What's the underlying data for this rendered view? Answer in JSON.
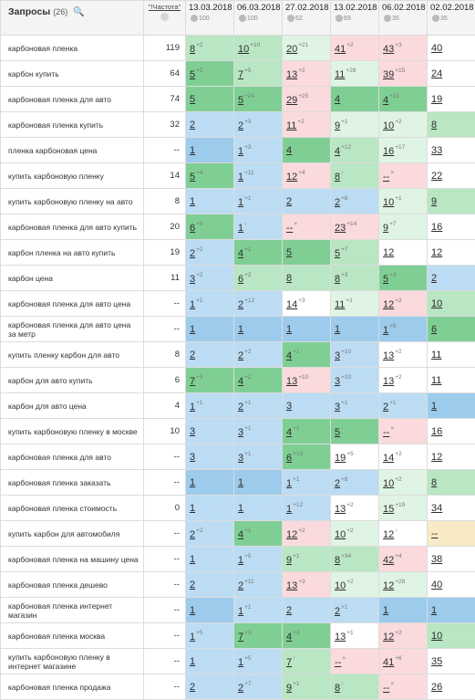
{
  "header": {
    "title": "Запросы",
    "count": "(26)",
    "freq_label": "\"!Частота\"",
    "dates": [
      {
        "date": "13.03.2018",
        "sub": "100"
      },
      {
        "date": "06.03.2018",
        "sub": "100"
      },
      {
        "date": "27.02.2018",
        "sub": "62"
      },
      {
        "date": "13.02.2018",
        "sub": "69"
      },
      {
        "date": "06.02.2018",
        "sub": "35"
      },
      {
        "date": "02.02.2018",
        "sub": "35"
      }
    ]
  },
  "rows": [
    {
      "q": "карбоновая пленка",
      "f": "119",
      "p": [
        [
          "8",
          "+2",
          "top10"
        ],
        [
          "10",
          "+10",
          "top10"
        ],
        [
          "20",
          "+21",
          "top30"
        ],
        [
          "41",
          "+2",
          "bad"
        ],
        [
          "43",
          "+3",
          "bad"
        ],
        [
          "40",
          "",
          "none"
        ]
      ]
    },
    {
      "q": "карбон купить",
      "f": "64",
      "p": [
        [
          "5",
          "+2",
          "top3"
        ],
        [
          "7",
          "+5",
          "top10"
        ],
        [
          "13",
          "+2",
          "bad"
        ],
        [
          "11",
          "+28",
          "top30"
        ],
        [
          "39",
          "+15",
          "bad"
        ],
        [
          "24",
          "",
          "none"
        ]
      ]
    },
    {
      "q": "карбоновая пленка для авто",
      "f": "74",
      "p": [
        [
          "5",
          "",
          "top3"
        ],
        [
          "5",
          "+24",
          "top3"
        ],
        [
          "29",
          "+25",
          "bad"
        ],
        [
          "4",
          "",
          "top3"
        ],
        [
          "4",
          "+15",
          "top3"
        ],
        [
          "19",
          "",
          "none"
        ]
      ]
    },
    {
      "q": "карбоновая пленка купить",
      "f": "32",
      "p": [
        [
          "2",
          "",
          "top2"
        ],
        [
          "2",
          "+3",
          "top2"
        ],
        [
          "11",
          "+2",
          "bad"
        ],
        [
          "9",
          "+1",
          "top30"
        ],
        [
          "10",
          "+2",
          "top30"
        ],
        [
          "8",
          "",
          "top10"
        ]
      ]
    },
    {
      "q": "пленка карбоновая цена",
      "f": "--",
      "p": [
        [
          "1",
          "",
          "top1"
        ],
        [
          "1",
          "+3",
          "top2"
        ],
        [
          "4",
          "",
          "top3"
        ],
        [
          "4",
          "+12",
          "top10"
        ],
        [
          "16",
          "+17",
          "top30"
        ],
        [
          "33",
          "",
          "none"
        ]
      ]
    },
    {
      "q": "купить карбоновую пленку",
      "f": "14",
      "p": [
        [
          "5",
          "+4",
          "top3"
        ],
        [
          "1",
          "+11",
          "top2"
        ],
        [
          "12",
          "+4",
          "bad"
        ],
        [
          "8",
          "↑",
          "top10"
        ],
        [
          "--",
          "×",
          "bad"
        ],
        [
          "22",
          "",
          "none"
        ]
      ]
    },
    {
      "q": "купить карбоновую пленку на авто",
      "f": "8",
      "p": [
        [
          "1",
          "",
          "top2"
        ],
        [
          "1",
          "+1",
          "top2"
        ],
        [
          "2",
          "",
          "top2"
        ],
        [
          "2",
          "+8",
          "top2"
        ],
        [
          "10",
          "+1",
          "top30"
        ],
        [
          "9",
          "",
          "top10"
        ]
      ]
    },
    {
      "q": "карбоновая пленка для авто купить",
      "f": "20",
      "p": [
        [
          "6",
          "+5",
          "top3"
        ],
        [
          "1",
          "↑",
          "top2"
        ],
        [
          "--",
          "×",
          "bad"
        ],
        [
          "23",
          "+14",
          "bad"
        ],
        [
          "9",
          "+7",
          "top30"
        ],
        [
          "16",
          "",
          "none"
        ]
      ]
    },
    {
      "q": "карбон пленка на авто купить",
      "f": "19",
      "p": [
        [
          "2",
          "+2",
          "top2"
        ],
        [
          "4",
          "+1",
          "top3"
        ],
        [
          "5",
          "",
          "top3"
        ],
        [
          "5",
          "+7",
          "top10"
        ],
        [
          "12",
          "",
          "none"
        ],
        [
          "12",
          "",
          "none"
        ]
      ]
    },
    {
      "q": "карбон цена",
      "f": "11",
      "p": [
        [
          "3",
          "+2",
          "top2"
        ],
        [
          "6",
          "+2",
          "top10"
        ],
        [
          "8",
          "",
          "top10"
        ],
        [
          "8",
          "+3",
          "top10"
        ],
        [
          "5",
          "+3",
          "top3"
        ],
        [
          "2",
          "",
          "top2"
        ]
      ]
    },
    {
      "q": "карбоновая пленка для авто цена",
      "f": "--",
      "p": [
        [
          "1",
          "+1",
          "top2"
        ],
        [
          "2",
          "+12",
          "top2"
        ],
        [
          "14",
          "+3",
          "none"
        ],
        [
          "11",
          "+1",
          "top30"
        ],
        [
          "12",
          "+2",
          "bad"
        ],
        [
          "10",
          "",
          "top10"
        ]
      ]
    },
    {
      "q": "карбоновая пленка для авто цена за метр",
      "f": "--",
      "p": [
        [
          "1",
          "",
          "top1"
        ],
        [
          "1",
          "",
          "top1"
        ],
        [
          "1",
          "",
          "top1"
        ],
        [
          "1",
          "",
          "top1"
        ],
        [
          "1",
          "+5",
          "top1"
        ],
        [
          "6",
          "",
          "top3"
        ]
      ]
    },
    {
      "q": "купить пленку карбон для авто",
      "f": "8",
      "p": [
        [
          "2",
          "",
          "top2"
        ],
        [
          "2",
          "+2",
          "top2"
        ],
        [
          "4",
          "+1",
          "top3"
        ],
        [
          "3",
          "+10",
          "top2"
        ],
        [
          "13",
          "+2",
          "none"
        ],
        [
          "11",
          "",
          "none"
        ]
      ]
    },
    {
      "q": "карбон для авто купить",
      "f": "6",
      "p": [
        [
          "7",
          "+3",
          "top3"
        ],
        [
          "4",
          "+2",
          "top3"
        ],
        [
          "13",
          "+10",
          "bad"
        ],
        [
          "3",
          "+10",
          "top2"
        ],
        [
          "13",
          "+2",
          "none"
        ],
        [
          "11",
          "",
          "none"
        ]
      ]
    },
    {
      "q": "карбон для авто цена",
      "f": "4",
      "p": [
        [
          "1",
          "+1",
          "top2"
        ],
        [
          "2",
          "+1",
          "top2"
        ],
        [
          "3",
          "",
          "top2"
        ],
        [
          "3",
          "+1",
          "top2"
        ],
        [
          "2",
          "+1",
          "top2"
        ],
        [
          "1",
          "",
          "top1"
        ]
      ]
    },
    {
      "q": "купить карбоновую пленку в москве",
      "f": "10",
      "p": [
        [
          "3",
          "",
          "top2"
        ],
        [
          "3",
          "+1",
          "top2"
        ],
        [
          "4",
          "+1",
          "top3"
        ],
        [
          "5",
          "↑",
          "top3"
        ],
        [
          "--",
          "×",
          "bad"
        ],
        [
          "16",
          "",
          "none"
        ]
      ]
    },
    {
      "q": "карбоновая пленка для авто",
      "f": "--",
      "p": [
        [
          "3",
          "",
          "top2"
        ],
        [
          "3",
          "+1",
          "top2"
        ],
        [
          "6",
          "+13",
          "top3"
        ],
        [
          "19",
          "+5",
          "none"
        ],
        [
          "14",
          "+2",
          "none"
        ],
        [
          "12",
          "",
          "none"
        ]
      ]
    },
    {
      "q": "карбоновая пленка заказать",
      "f": "--",
      "p": [
        [
          "1",
          "",
          "top1"
        ],
        [
          "1",
          "",
          "top1"
        ],
        [
          "1",
          "+1",
          "top2"
        ],
        [
          "2",
          "+8",
          "top2"
        ],
        [
          "10",
          "+2",
          "top30"
        ],
        [
          "8",
          "",
          "top10"
        ]
      ]
    },
    {
      "q": "карбоновая пленка стоимость",
      "f": "0",
      "p": [
        [
          "1",
          "",
          "top2"
        ],
        [
          "1",
          "",
          "top2"
        ],
        [
          "1",
          "+12",
          "top2"
        ],
        [
          "13",
          "+2",
          "none"
        ],
        [
          "15",
          "+19",
          "top30"
        ],
        [
          "34",
          "",
          "none"
        ]
      ]
    },
    {
      "q": "купить карбон для автомобиля",
      "f": "--",
      "p": [
        [
          "2",
          "+2",
          "top2"
        ],
        [
          "4",
          "+1",
          "top3"
        ],
        [
          "12",
          "+2",
          "bad"
        ],
        [
          "10",
          "+2",
          "top30"
        ],
        [
          "12",
          "↑",
          "none"
        ],
        [
          "--",
          "",
          "yel"
        ]
      ]
    },
    {
      "q": "карбоновая пленка на машину цена",
      "f": "--",
      "p": [
        [
          "1",
          "",
          "top2"
        ],
        [
          "1",
          "+5",
          "top2"
        ],
        [
          "9",
          "+1",
          "top10"
        ],
        [
          "8",
          "+34",
          "top10"
        ],
        [
          "42",
          "+4",
          "bad"
        ],
        [
          "38",
          "",
          "none"
        ]
      ]
    },
    {
      "q": "карбоновая пленка дешево",
      "f": "--",
      "p": [
        [
          "2",
          "",
          "top2"
        ],
        [
          "2",
          "+11",
          "top2"
        ],
        [
          "13",
          "+3",
          "bad"
        ],
        [
          "10",
          "+2",
          "top30"
        ],
        [
          "12",
          "+28",
          "top30"
        ],
        [
          "40",
          "",
          "none"
        ]
      ]
    },
    {
      "q": "карбоновая пленка интернет магазин",
      "f": "--",
      "p": [
        [
          "1",
          "",
          "top1"
        ],
        [
          "1",
          "+1",
          "top2"
        ],
        [
          "2",
          "",
          "top2"
        ],
        [
          "2",
          "+1",
          "top2"
        ],
        [
          "1",
          "",
          "top1"
        ],
        [
          "1",
          "",
          "top1"
        ]
      ]
    },
    {
      "q": "карбоновая пленка москва",
      "f": "--",
      "p": [
        [
          "1",
          "+5",
          "top2"
        ],
        [
          "7",
          "+3",
          "top3"
        ],
        [
          "4",
          "+3",
          "top3"
        ],
        [
          "13",
          "+1",
          "none"
        ],
        [
          "12",
          "+2",
          "bad"
        ],
        [
          "10",
          "",
          "top10"
        ]
      ]
    },
    {
      "q": "купить карбоновую пленку в интернет магазине",
      "f": "--",
      "p": [
        [
          "1",
          "",
          "top2"
        ],
        [
          "1",
          "+5",
          "top2"
        ],
        [
          "7",
          "↑",
          "top10"
        ],
        [
          "--",
          "×",
          "bad"
        ],
        [
          "41",
          "+6",
          "bad"
        ],
        [
          "35",
          "",
          "none"
        ]
      ]
    },
    {
      "q": "карбоновая пленка продажа",
      "f": "--",
      "p": [
        [
          "2",
          "",
          "top2"
        ],
        [
          "2",
          "+7",
          "top2"
        ],
        [
          "9",
          "+1",
          "top10"
        ],
        [
          "8",
          "↑",
          "top10"
        ],
        [
          "--",
          "×",
          "bad"
        ],
        [
          "26",
          "",
          "none"
        ]
      ]
    }
  ]
}
